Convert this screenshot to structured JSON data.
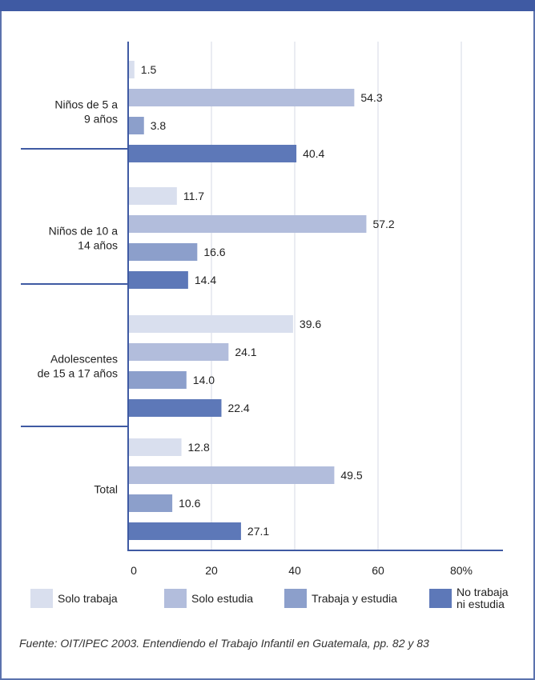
{
  "chart_data": {
    "type": "bar",
    "orientation": "horizontal",
    "categories": [
      [
        "Niños de 5 a",
        "9 años"
      ],
      [
        "Niños de 10 a",
        "14 años"
      ],
      [
        "Adolescentes",
        "de 15 a 17 años"
      ],
      [
        "Total"
      ]
    ],
    "series": [
      {
        "name": "Solo trabaja",
        "color": "#d9dfee",
        "values": [
          1.5,
          11.7,
          39.6,
          12.8
        ]
      },
      {
        "name": "Solo estudia",
        "color": "#b2bddc",
        "values": [
          54.3,
          57.2,
          24.1,
          49.5
        ]
      },
      {
        "name": "Trabaja y estudia",
        "color": "#8c9fcb",
        "values": [
          3.8,
          16.6,
          14.0,
          10.6
        ]
      },
      {
        "name": "No trabaja ni estudia",
        "legend_lines": [
          "No trabaja",
          "ni estudia"
        ],
        "color": "#5d78b8",
        "values": [
          40.4,
          14.4,
          22.4,
          27.1
        ]
      }
    ],
    "data_labels": [
      [
        "1.5",
        "11.7",
        "39.6",
        "12.8"
      ],
      [
        "54.3",
        "57.2",
        "24.1",
        "49.5"
      ],
      [
        "3.8",
        "16.6",
        "14.0",
        "10.6"
      ],
      [
        "40.4",
        "14.4",
        "22.4",
        "27.1"
      ]
    ],
    "xticks": [
      0,
      20,
      40,
      60,
      80
    ],
    "xtick_labels": [
      "0",
      "20",
      "40",
      "60",
      "80%"
    ],
    "xlim": [
      0,
      88
    ],
    "grid": true,
    "legend": "bottom"
  },
  "source": "Fuente: OIT/IPEC 2003. Entendiendo el Trabajo Infantil en Guatemala, pp. 82 y 83",
  "colors": {
    "frame": "#3f5aa3",
    "axis": "#3f5aa3",
    "grid": "#d4d9e6"
  }
}
